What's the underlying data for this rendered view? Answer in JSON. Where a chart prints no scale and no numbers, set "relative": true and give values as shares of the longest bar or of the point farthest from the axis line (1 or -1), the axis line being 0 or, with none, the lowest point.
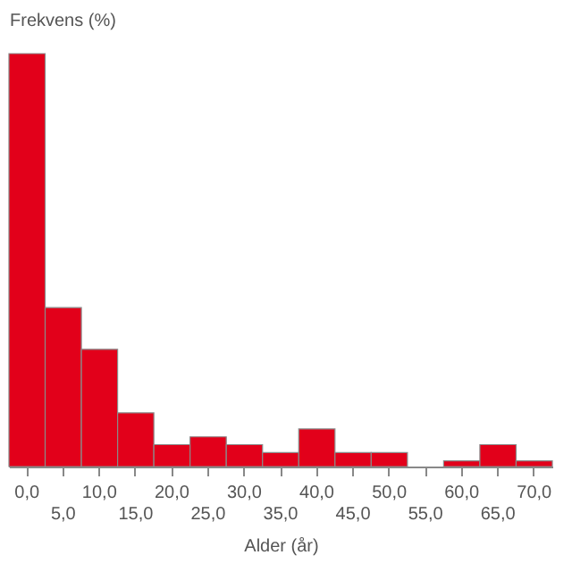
{
  "chart_data": {
    "type": "bar",
    "relative": true,
    "xlabel": "Alder (år)",
    "ylabel": "Frekvens (%)",
    "color": "#e2001a",
    "categories": [
      "0,0",
      "5,0",
      "10,0",
      "15,0",
      "20,0",
      "25,0",
      "30,0",
      "35,0",
      "40,0",
      "45,0",
      "50,0",
      "55,0",
      "60,0",
      "65,0",
      "70,0"
    ],
    "values": [
      1,
      0.385,
      0.284,
      0.13,
      0.053,
      0.072,
      0.053,
      0.034,
      0.091,
      0.034,
      0.034,
      0,
      0.014,
      0.053,
      0.014
    ]
  }
}
